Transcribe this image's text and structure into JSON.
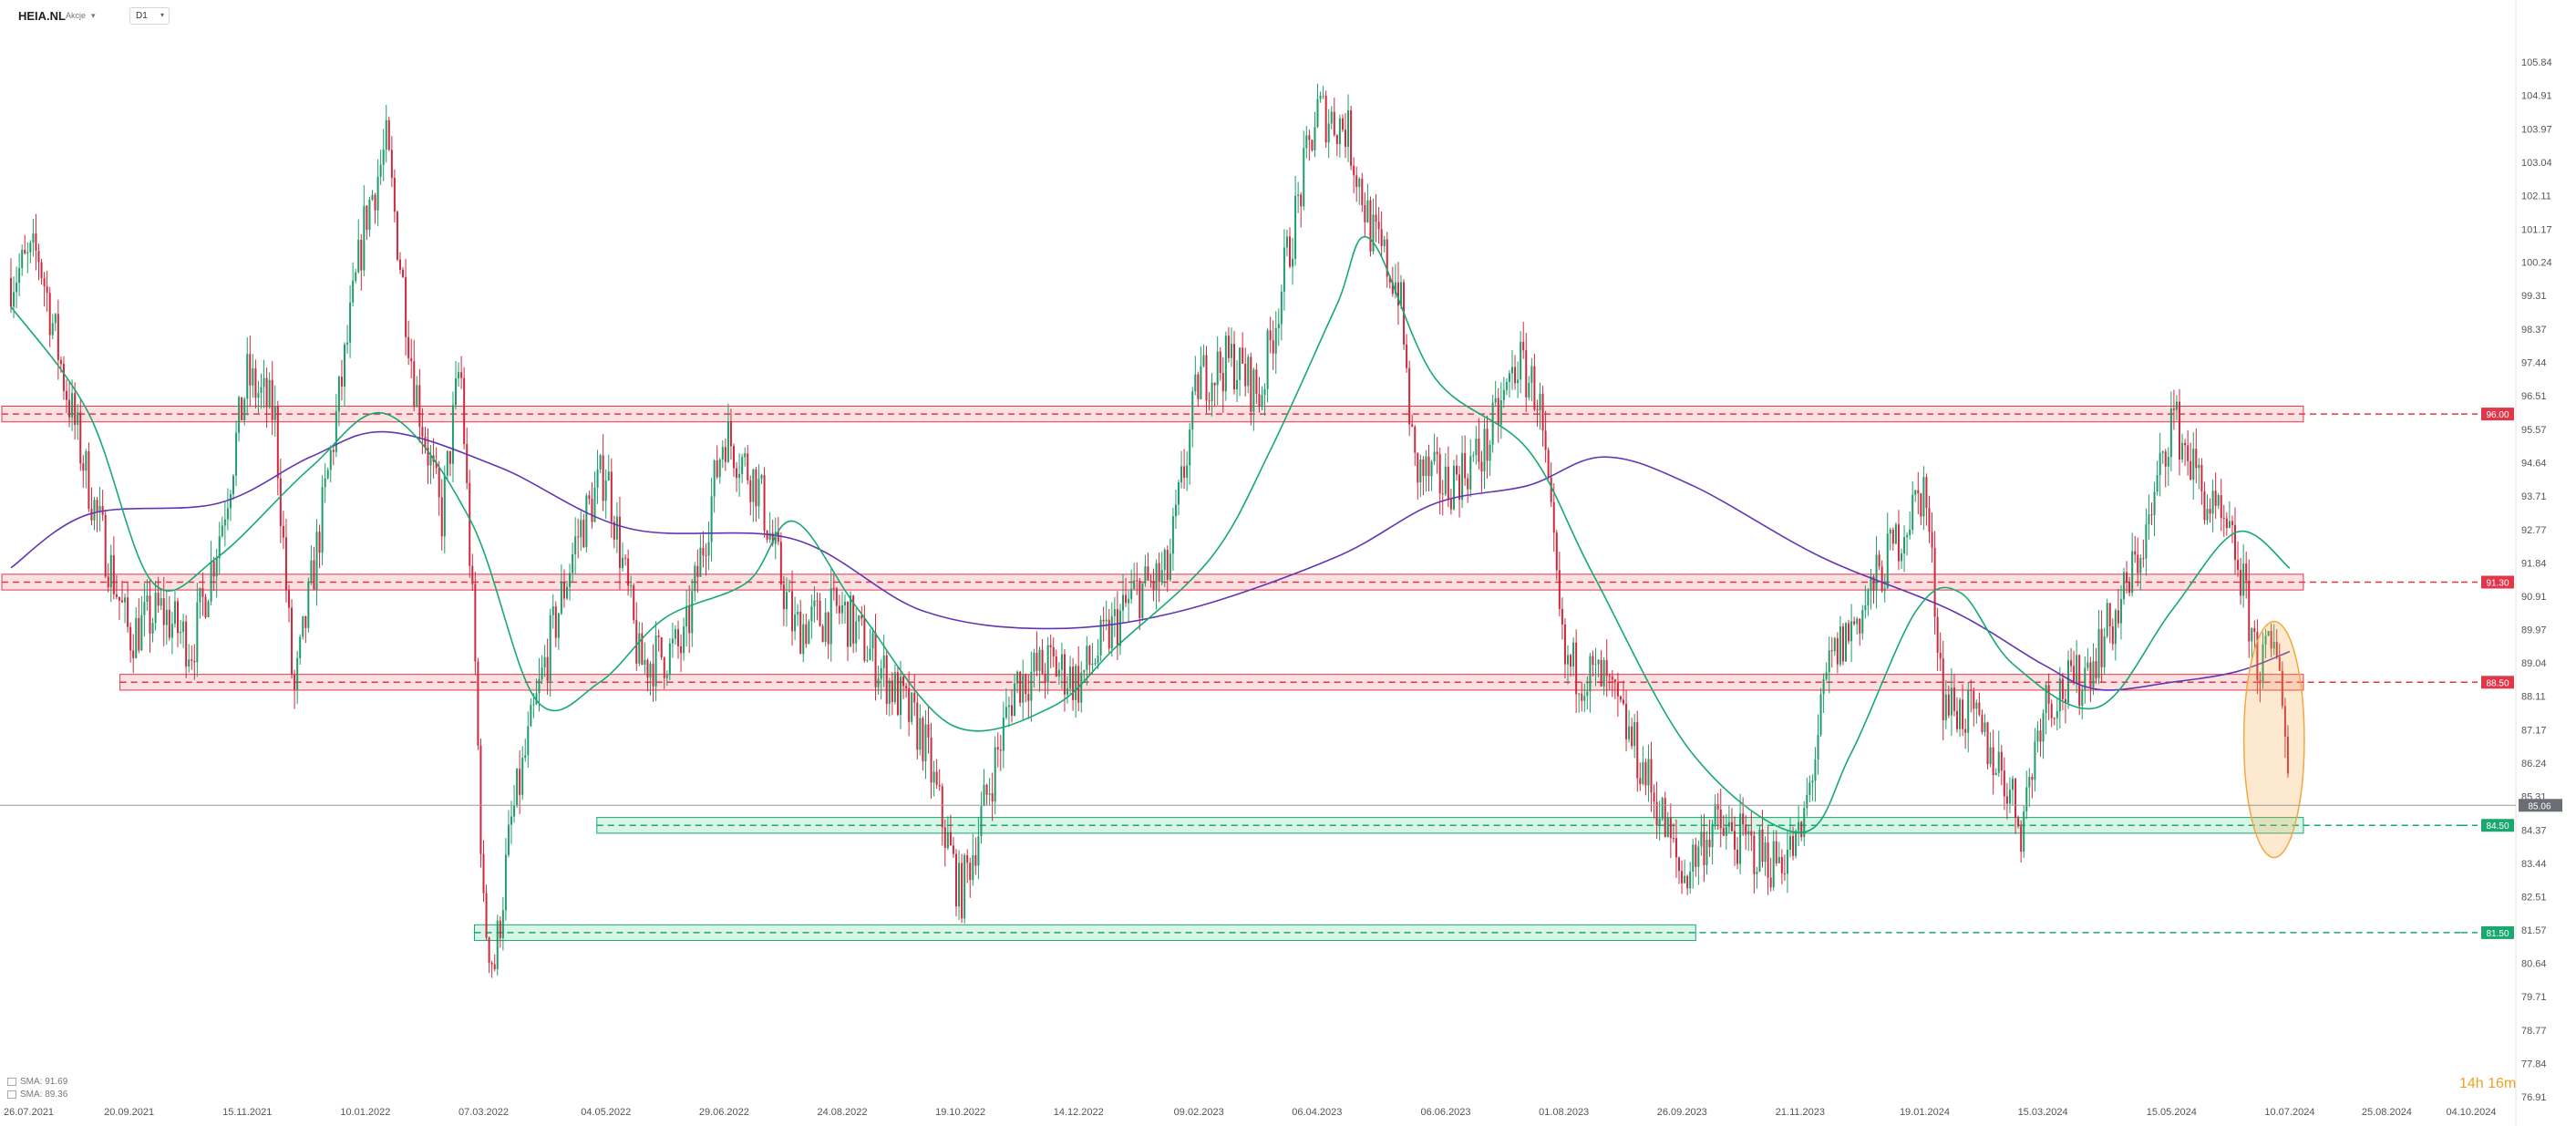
{
  "header": {
    "symbol": "HEIA.NL",
    "type": "Akcje",
    "timeframe": "D1"
  },
  "legend": [
    {
      "label": "SMA: 91.69",
      "color": "#2a9d6f"
    },
    {
      "label": "SMA: 89.36",
      "color": "#6a3fb0"
    }
  ],
  "countdown": "14h 16m",
  "colors": {
    "up": "#1e9d6a",
    "down": "#d0283c",
    "sma_fast": "#16a974",
    "sma_slow": "#6236b3",
    "resistance": "#e0384a",
    "support": "#1aa86e",
    "highlight": "#f5a73f"
  },
  "chart_data": {
    "type": "candlestick",
    "title": "HEIA.NL",
    "timeframe": "D1",
    "ylim": [
      76.91,
      106.3
    ],
    "y_ticks": [
      105.84,
      104.91,
      103.97,
      103.04,
      102.11,
      101.17,
      100.24,
      99.31,
      98.37,
      97.44,
      96.51,
      95.57,
      94.64,
      93.71,
      92.77,
      91.84,
      90.91,
      89.97,
      89.04,
      88.11,
      87.17,
      86.24,
      85.31,
      84.37,
      83.44,
      82.51,
      81.57,
      80.64,
      79.71,
      78.77,
      77.84,
      76.91
    ],
    "x_ticks": [
      "26.07.2021",
      "20.09.2021",
      "15.11.2021",
      "10.01.2022",
      "07.03.2022",
      "04.05.2022",
      "29.06.2022",
      "24.08.2022",
      "19.10.2022",
      "14.12.2022",
      "09.02.2023",
      "06.04.2023",
      "06.06.2023",
      "01.08.2023",
      "26.09.2023",
      "21.11.2023",
      "19.01.2024",
      "15.03.2024",
      "15.05.2024",
      "10.07.2024",
      "25.08.2024",
      "04.10.2024"
    ],
    "x_range": [
      "26.07.2021",
      "04.10.2024"
    ],
    "last_price": 85.06,
    "levels": [
      {
        "value": 96.0,
        "label": "96.00",
        "kind": "resistance",
        "from": "26.07.2021",
        "to": "10.07.2024"
      },
      {
        "value": 91.3,
        "label": "91.30",
        "kind": "resistance",
        "from": "26.07.2021",
        "to": "10.07.2024"
      },
      {
        "value": 88.5,
        "label": "88.50",
        "kind": "resistance",
        "from": "20.09.2021",
        "to": "10.07.2024"
      },
      {
        "value": 84.5,
        "label": "84.50",
        "kind": "support",
        "from": "04.05.2022",
        "to": "10.07.2024"
      },
      {
        "value": 81.5,
        "label": "81.50",
        "kind": "support",
        "from": "07.03.2022",
        "to": "26.09.2023"
      }
    ],
    "price_path": [
      [
        "26.07.2021",
        99.8
      ],
      [
        "08.08.2021",
        100.5
      ],
      [
        "20.08.2021",
        97.0
      ],
      [
        "03.09.2021",
        93.5
      ],
      [
        "20.09.2021",
        89.8
      ],
      [
        "05.10.2021",
        90.5
      ],
      [
        "20.10.2021",
        89.5
      ],
      [
        "03.11.2021",
        93.0
      ],
      [
        "15.11.2021",
        97.0
      ],
      [
        "28.11.2021",
        96.0
      ],
      [
        "07.12.2021",
        88.0
      ],
      [
        "20.12.2021",
        93.0
      ],
      [
        "30.12.2021",
        97.0
      ],
      [
        "10.01.2022",
        101.5
      ],
      [
        "20.01.2022",
        103.5
      ],
      [
        "02.02.2022",
        97.0
      ],
      [
        "15.02.2022",
        93.0
      ],
      [
        "24.02.2022",
        97.5
      ],
      [
        "03.03.2022",
        89.0
      ],
      [
        "07.03.2022",
        82.0
      ],
      [
        "12.03.2022",
        80.5
      ],
      [
        "20.03.2022",
        84.5
      ],
      [
        "05.04.2022",
        89.0
      ],
      [
        "20.04.2022",
        92.5
      ],
      [
        "04.05.2022",
        94.5
      ],
      [
        "20.05.2022",
        89.0
      ],
      [
        "10.06.2022",
        89.5
      ],
      [
        "29.06.2022",
        95.5
      ],
      [
        "15.07.2022",
        94.0
      ],
      [
        "01.08.2022",
        90.0
      ],
      [
        "24.08.2022",
        90.5
      ],
      [
        "10.09.2022",
        89.0
      ],
      [
        "01.10.2022",
        87.0
      ],
      [
        "19.10.2022",
        82.5
      ],
      [
        "28.10.2022",
        84.5
      ],
      [
        "14.11.2022",
        88.5
      ],
      [
        "01.12.2022",
        89.0
      ],
      [
        "14.12.2022",
        88.5
      ],
      [
        "10.01.2023",
        91.0
      ],
      [
        "25.01.2023",
        91.5
      ],
      [
        "09.02.2023",
        97.0
      ],
      [
        "25.02.2023",
        97.5
      ],
      [
        "10.03.2023",
        96.5
      ],
      [
        "25.03.2023",
        101.0
      ],
      [
        "06.04.2023",
        104.5
      ],
      [
        "20.04.2023",
        104.0
      ],
      [
        "02.05.2023",
        101.0
      ],
      [
        "15.05.2023",
        99.5
      ],
      [
        "22.05.2023",
        94.5
      ],
      [
        "06.06.2023",
        94.0
      ],
      [
        "25.06.2023",
        95.0
      ],
      [
        "10.07.2023",
        97.5
      ],
      [
        "20.07.2023",
        96.5
      ],
      [
        "01.08.2023",
        89.0
      ],
      [
        "20.08.2023",
        88.5
      ],
      [
        "01.09.2023",
        87.0
      ],
      [
        "15.09.2023",
        85.0
      ],
      [
        "26.09.2023",
        83.0
      ],
      [
        "10.10.2023",
        84.5
      ],
      [
        "25.10.2023",
        84.0
      ],
      [
        "08.11.2023",
        83.5
      ],
      [
        "21.11.2023",
        84.0
      ],
      [
        "05.12.2023",
        89.0
      ],
      [
        "20.12.2023",
        90.5
      ],
      [
        "19.01.2024",
        94.0
      ],
      [
        "28.01.2024",
        88.0
      ],
      [
        "10.02.2024",
        87.5
      ],
      [
        "25.02.2024",
        86.0
      ],
      [
        "05.03.2024",
        84.5
      ],
      [
        "15.03.2024",
        88.0
      ],
      [
        "01.04.2024",
        88.5
      ],
      [
        "20.04.2024",
        90.5
      ],
      [
        "05.05.2024",
        93.0
      ],
      [
        "15.05.2024",
        96.0
      ],
      [
        "01.06.2024",
        93.5
      ],
      [
        "15.06.2024",
        92.0
      ],
      [
        "25.06.2024",
        89.0
      ],
      [
        "05.07.2024",
        89.5
      ],
      [
        "10.07.2024",
        85.1
      ]
    ],
    "sma_fast_path": [
      [
        "26.07.2021",
        99.0
      ],
      [
        "01.09.2021",
        96.0
      ],
      [
        "01.10.2021",
        91.3
      ],
      [
        "01.11.2021",
        92.0
      ],
      [
        "15.12.2021",
        94.5
      ],
      [
        "20.01.2022",
        96.0
      ],
      [
        "01.03.2022",
        93.0
      ],
      [
        "01.04.2022",
        88.0
      ],
      [
        "01.05.2022",
        88.5
      ],
      [
        "01.06.2022",
        90.3
      ],
      [
        "10.07.2022",
        91.3
      ],
      [
        "01.08.2022",
        93.0
      ],
      [
        "01.09.2022",
        90.5
      ],
      [
        "15.10.2022",
        87.3
      ],
      [
        "01.12.2022",
        87.8
      ],
      [
        "01.01.2023",
        89.5
      ],
      [
        "15.02.2023",
        92.0
      ],
      [
        "15.03.2023",
        95.0
      ],
      [
        "15.04.2023",
        99.0
      ],
      [
        "01.05.2023",
        100.9
      ],
      [
        "01.06.2023",
        97.0
      ],
      [
        "15.07.2023",
        95.0
      ],
      [
        "15.08.2023",
        91.5
      ],
      [
        "01.10.2023",
        86.5
      ],
      [
        "21.11.2023",
        84.3
      ],
      [
        "15.12.2023",
        86.5
      ],
      [
        "15.01.2024",
        90.5
      ],
      [
        "05.02.2024",
        91.0
      ],
      [
        "01.03.2024",
        89.0
      ],
      [
        "10.04.2024",
        87.8
      ],
      [
        "15.05.2024",
        90.5
      ],
      [
        "15.06.2024",
        92.7
      ],
      [
        "10.07.2024",
        91.69
      ]
    ],
    "sma_slow_path": [
      [
        "26.07.2021",
        91.7
      ],
      [
        "01.09.2021",
        93.2
      ],
      [
        "01.11.2021",
        93.5
      ],
      [
        "15.12.2021",
        94.8
      ],
      [
        "20.01.2022",
        95.5
      ],
      [
        "15.03.2022",
        94.5
      ],
      [
        "15.05.2022",
        92.8
      ],
      [
        "01.08.2022",
        92.5
      ],
      [
        "01.10.2022",
        90.5
      ],
      [
        "01.12.2022",
        90.0
      ],
      [
        "01.02.2023",
        90.5
      ],
      [
        "15.04.2023",
        92.0
      ],
      [
        "01.06.2023",
        93.5
      ],
      [
        "15.07.2023",
        94.0
      ],
      [
        "20.08.2023",
        94.8
      ],
      [
        "01.10.2023",
        94.0
      ],
      [
        "01.12.2023",
        92.0
      ],
      [
        "01.02.2024",
        90.5
      ],
      [
        "15.03.2024",
        89.0
      ],
      [
        "10.04.2024",
        88.3
      ],
      [
        "15.05.2024",
        88.5
      ],
      [
        "15.06.2024",
        88.8
      ],
      [
        "10.07.2024",
        89.36
      ]
    ],
    "highlight_zone": {
      "from": "20.06.2024",
      "to": "10.07.2024",
      "y_low": 83.6,
      "y_high": 90.2
    }
  }
}
